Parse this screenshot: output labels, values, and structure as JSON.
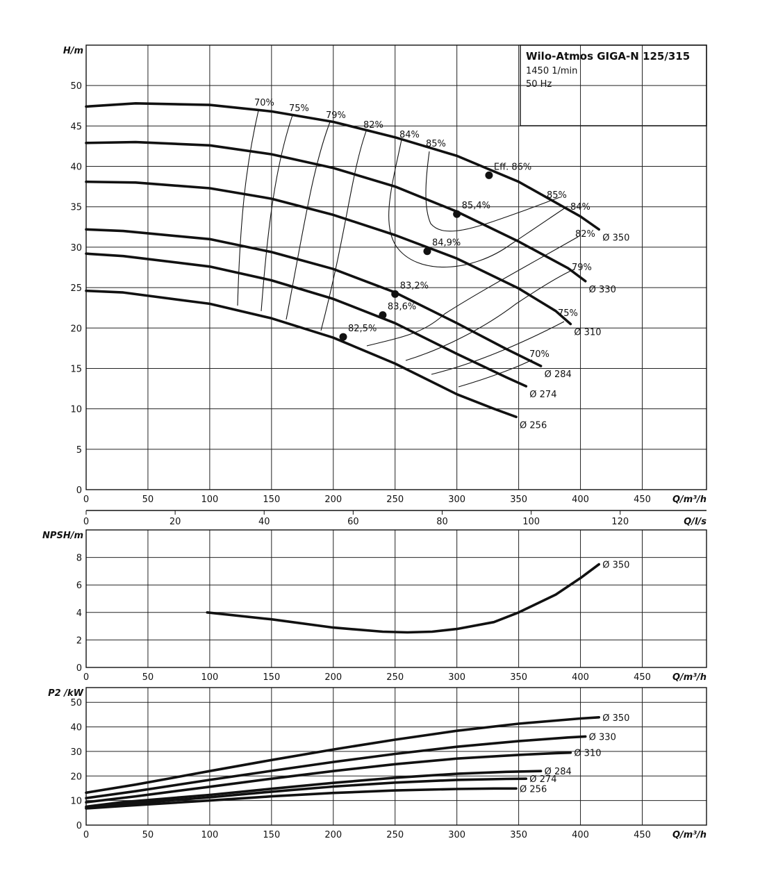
{
  "chart_data": [
    {
      "type": "line",
      "title": "Wilo-Atmos GIGA-N 125/315",
      "subtitle_lines": [
        "1450 1/min",
        "50 Hz"
      ],
      "xlabel": "Q/m³/h",
      "ylabel": "H/m",
      "xlim": [
        0,
        502
      ],
      "ylim": [
        0,
        55
      ],
      "xticks": [
        0,
        50,
        100,
        150,
        200,
        250,
        300,
        350,
        400,
        450
      ],
      "yticks": [
        0,
        5,
        10,
        15,
        20,
        25,
        30,
        35,
        40,
        45,
        50
      ],
      "secondary_xaxis": {
        "label": "Q/l/s",
        "xlim": [
          0,
          139.4
        ],
        "ticks": [
          0,
          20,
          40,
          60,
          80,
          100,
          120
        ]
      },
      "grid": true,
      "series": [
        {
          "name": "Ø 350",
          "x": [
            0,
            40,
            100,
            150,
            200,
            250,
            300,
            350,
            400,
            415
          ],
          "y": [
            47.4,
            47.8,
            47.6,
            46.8,
            45.5,
            43.6,
            41.3,
            38.1,
            33.8,
            32.2
          ]
        },
        {
          "name": "Ø 330",
          "x": [
            0,
            40,
            100,
            150,
            200,
            250,
            300,
            350,
            390,
            404
          ],
          "y": [
            42.9,
            43.0,
            42.6,
            41.5,
            39.8,
            37.5,
            34.4,
            30.7,
            27.4,
            25.8
          ]
        },
        {
          "name": "Ø 310",
          "x": [
            0,
            40,
            100,
            150,
            200,
            250,
            300,
            350,
            380,
            392
          ],
          "y": [
            38.1,
            38.0,
            37.3,
            36.0,
            34.0,
            31.5,
            28.6,
            24.9,
            22.1,
            20.5
          ]
        },
        {
          "name": "Ø 284",
          "x": [
            0,
            30,
            100,
            150,
            200,
            250,
            300,
            340,
            368
          ],
          "y": [
            32.2,
            32.0,
            31.0,
            29.4,
            27.3,
            24.4,
            20.6,
            17.4,
            15.3
          ]
        },
        {
          "name": "Ø 274",
          "x": [
            0,
            30,
            100,
            150,
            200,
            250,
            300,
            340,
            356
          ],
          "y": [
            29.2,
            28.9,
            27.6,
            25.9,
            23.6,
            20.6,
            16.8,
            13.9,
            12.8
          ]
        },
        {
          "name": "Ø 256",
          "x": [
            0,
            30,
            100,
            150,
            200,
            250,
            300,
            330,
            348
          ],
          "y": [
            24.6,
            24.4,
            23.0,
            21.2,
            18.8,
            15.6,
            11.8,
            10.0,
            9.0
          ]
        }
      ],
      "efficiency_points": [
        {
          "x": 326,
          "y": 38.9,
          "label": "Eff. 86%"
        },
        {
          "x": 300,
          "y": 34.1,
          "label": "85,4%"
        },
        {
          "x": 276,
          "y": 29.5,
          "label": "84,9%"
        },
        {
          "x": 250,
          "y": 24.2,
          "label": "83,2%"
        },
        {
          "x": 240,
          "y": 21.6,
          "label": "83,6%"
        },
        {
          "x": 208,
          "y": 18.9,
          "label": "82,5%"
        }
      ],
      "efficiency_labels": [
        "70%",
        "75%",
        "79%",
        "82%",
        "84%",
        "85%",
        "85%",
        "84%",
        "82%",
        "79%",
        "75%",
        "70%"
      ],
      "diameter_labels": [
        "Ø 350",
        "Ø 330",
        "Ø 310",
        "Ø 284",
        "Ø 274",
        "Ø 256"
      ]
    },
    {
      "type": "line",
      "xlabel": "Q/m³/h",
      "ylabel": "NPSH/m",
      "xlim": [
        0,
        502
      ],
      "ylim": [
        0,
        10
      ],
      "xticks": [
        0,
        50,
        100,
        150,
        200,
        250,
        300,
        350,
        400,
        450
      ],
      "yticks": [
        0,
        2,
        4,
        6,
        8
      ],
      "grid": true,
      "series": [
        {
          "name": "Ø 350",
          "x": [
            98,
            150,
            200,
            240,
            260,
            280,
            300,
            330,
            350,
            380,
            400,
            415
          ],
          "y": [
            4.0,
            3.5,
            2.9,
            2.6,
            2.55,
            2.6,
            2.8,
            3.3,
            4.0,
            5.3,
            6.5,
            7.5
          ]
        }
      ]
    },
    {
      "type": "line",
      "xlabel": "Q/m³/h",
      "ylabel": "P2 /kW",
      "xlim": [
        0,
        502
      ],
      "ylim": [
        0,
        56
      ],
      "xticks": [
        0,
        50,
        100,
        150,
        200,
        250,
        300,
        350,
        400,
        450
      ],
      "yticks": [
        0,
        10,
        20,
        30,
        40,
        50
      ],
      "grid": true,
      "series": [
        {
          "name": "Ø 350",
          "x": [
            0,
            40,
            100,
            150,
            200,
            250,
            300,
            350,
            400,
            415
          ],
          "y": [
            13.2,
            16.5,
            22.0,
            26.5,
            30.8,
            34.8,
            38.4,
            41.3,
            43.4,
            43.9
          ]
        },
        {
          "name": "Ø 330",
          "x": [
            0,
            40,
            100,
            150,
            200,
            250,
            300,
            350,
            390,
            404
          ],
          "y": [
            11.0,
            13.8,
            18.4,
            22.1,
            25.7,
            29.0,
            31.9,
            34.2,
            35.7,
            36.1
          ]
        },
        {
          "name": "Ø 310",
          "x": [
            0,
            40,
            100,
            150,
            200,
            250,
            300,
            350,
            380,
            392
          ],
          "y": [
            9.3,
            11.7,
            15.6,
            18.9,
            22.0,
            24.8,
            27.1,
            28.6,
            29.3,
            29.5
          ]
        },
        {
          "name": "Ø 284",
          "x": [
            0,
            30,
            100,
            150,
            200,
            250,
            300,
            340,
            368
          ],
          "y": [
            7.5,
            9.4,
            12.3,
            14.8,
            17.2,
            19.3,
            20.9,
            21.7,
            22.0
          ]
        },
        {
          "name": "Ø 274",
          "x": [
            0,
            30,
            100,
            150,
            200,
            250,
            300,
            340,
            356
          ],
          "y": [
            7.0,
            8.5,
            11.3,
            13.6,
            15.7,
            17.3,
            18.4,
            18.8,
            18.9
          ]
        },
        {
          "name": "Ø 256",
          "x": [
            0,
            30,
            100,
            150,
            200,
            250,
            300,
            330,
            348
          ],
          "y": [
            6.8,
            7.8,
            10.0,
            11.7,
            13.1,
            14.1,
            14.7,
            14.9,
            14.9
          ]
        }
      ]
    }
  ]
}
